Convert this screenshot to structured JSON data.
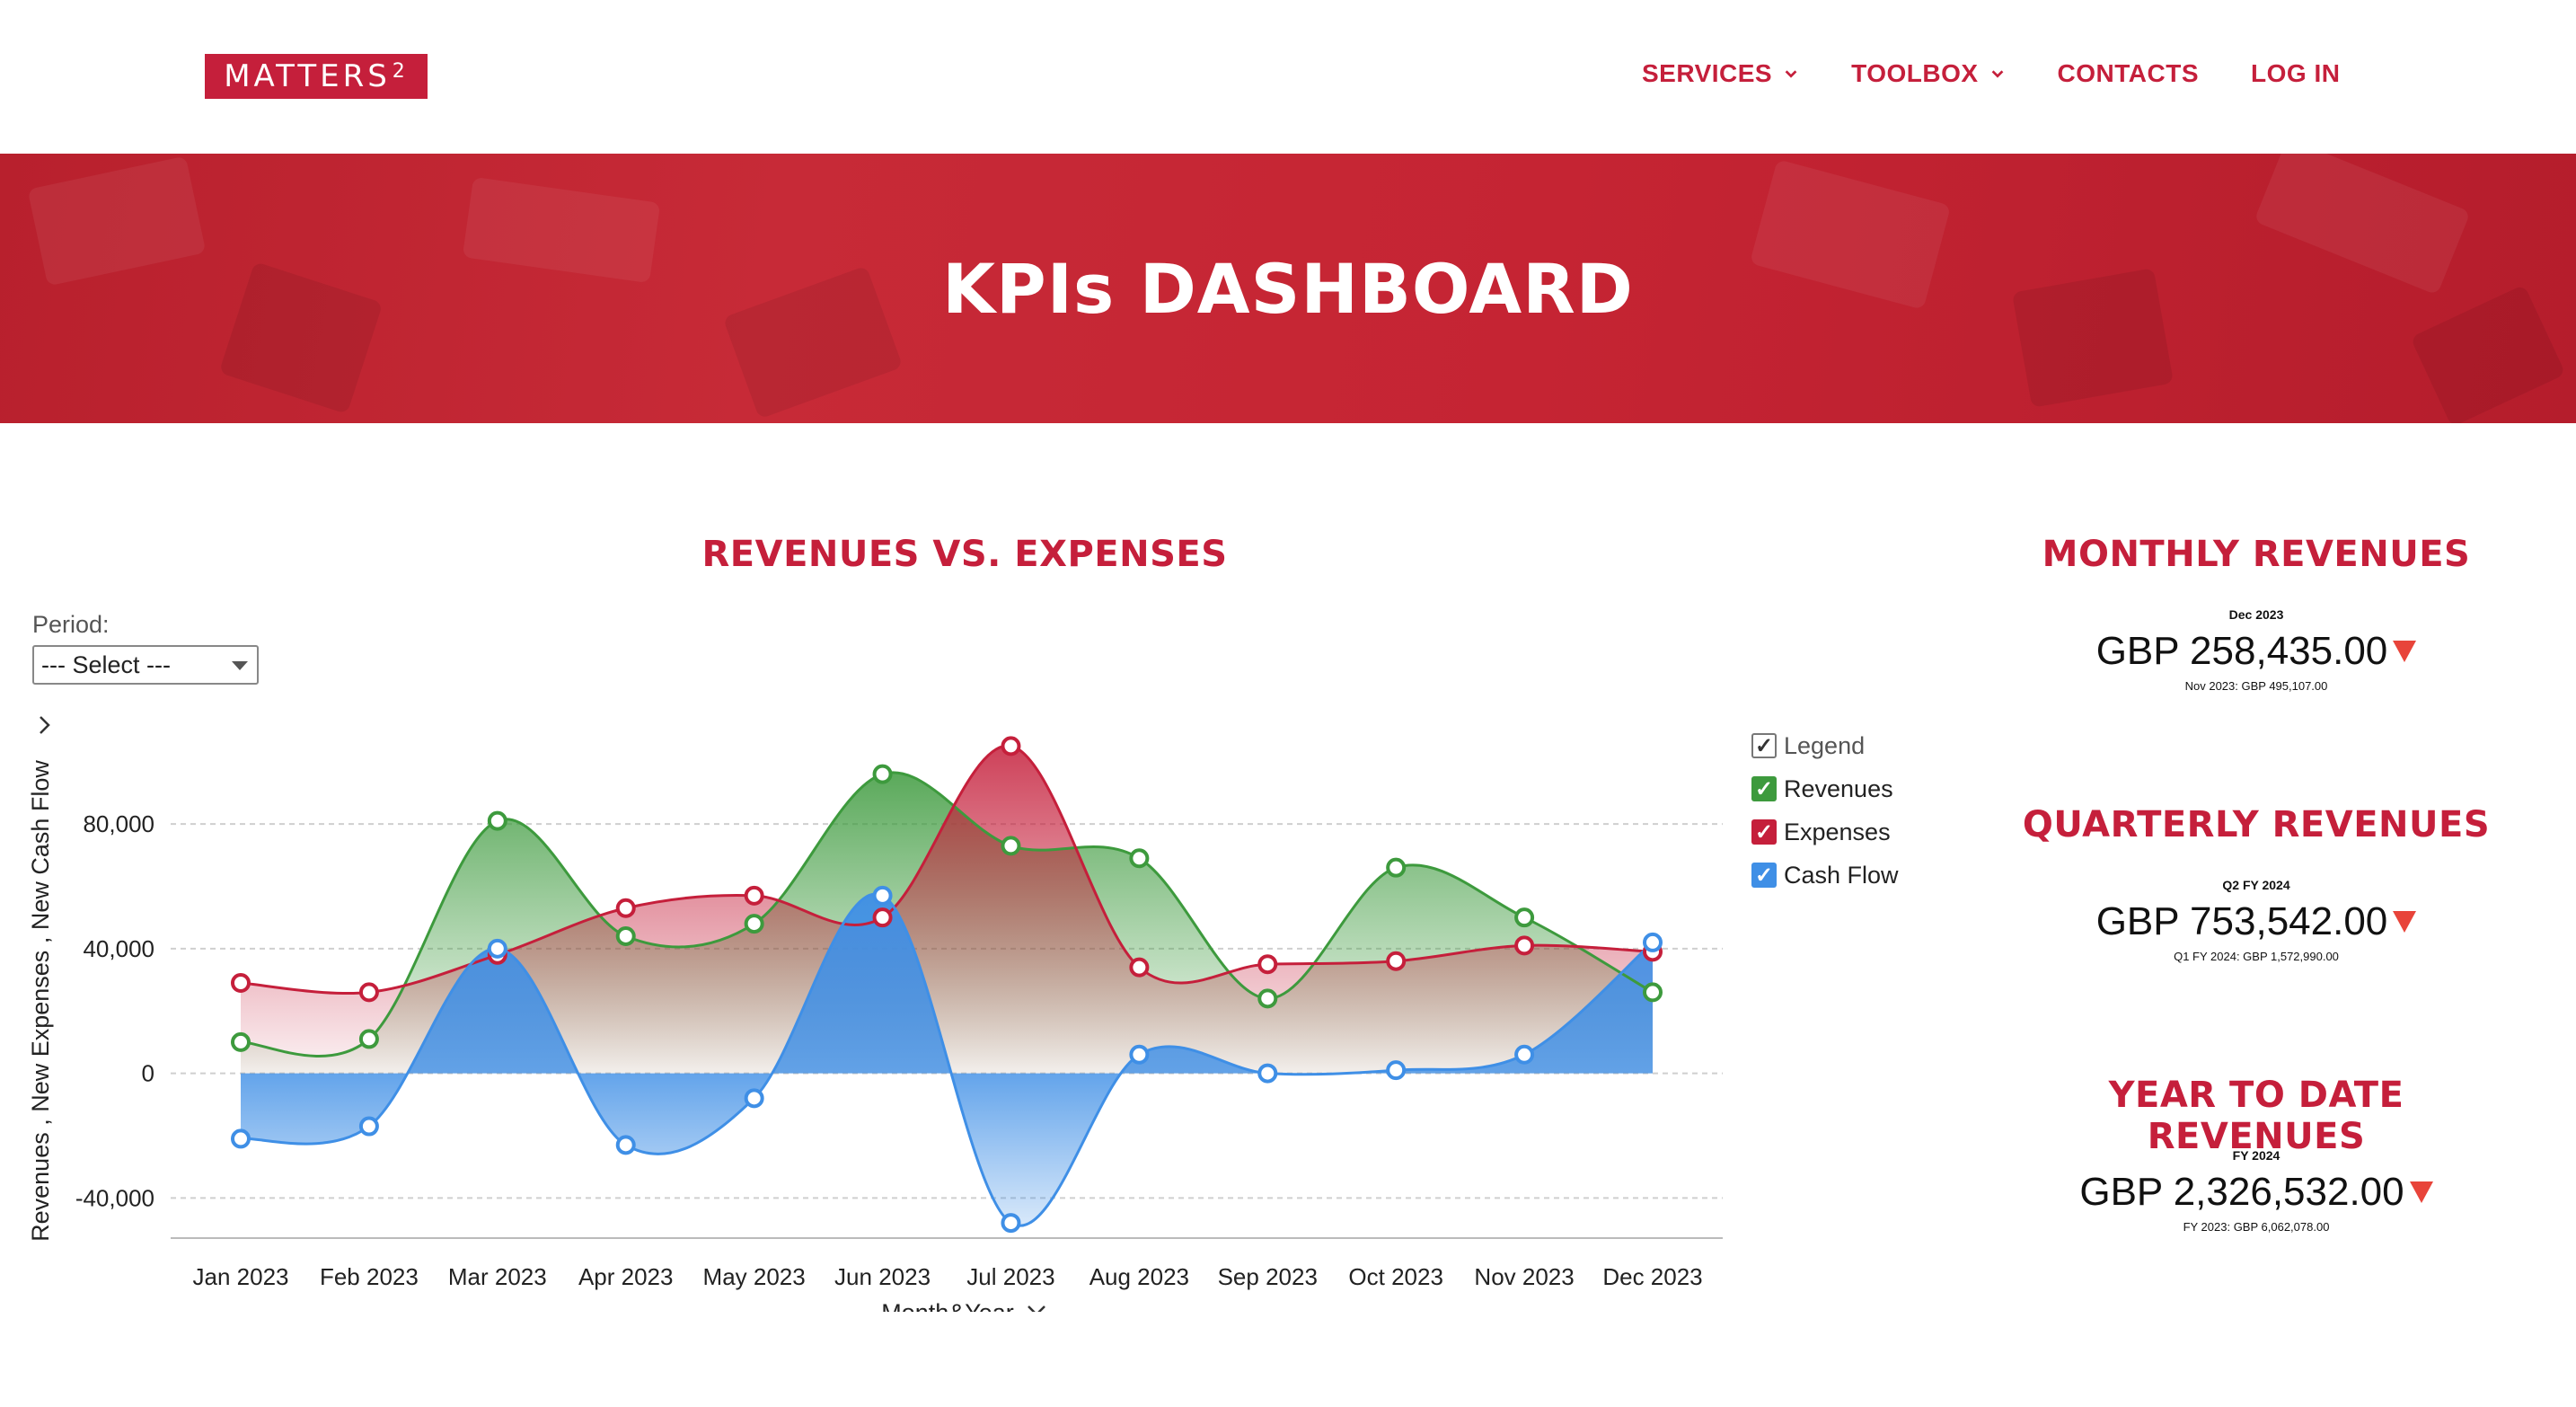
{
  "brand": {
    "name": "MATTERS",
    "superscript": "2"
  },
  "nav": {
    "items": [
      {
        "label": "SERVICES",
        "dropdown": true
      },
      {
        "label": "TOOLBOX",
        "dropdown": true
      },
      {
        "label": "CONTACTS",
        "dropdown": false
      },
      {
        "label": "LOG IN",
        "dropdown": false
      }
    ]
  },
  "hero": {
    "title": "KPIs DASHBOARD"
  },
  "chart_section": {
    "title": "REVENUES VS. EXPENSES",
    "period_label": "Period:",
    "period_select": "--- Select ---"
  },
  "chart_data": {
    "type": "area",
    "categories": [
      "Jan 2023",
      "Feb 2023",
      "Mar 2023",
      "Apr 2023",
      "May 2023",
      "Jun 2023",
      "Jul 2023",
      "Aug 2023",
      "Sep 2023",
      "Oct 2023",
      "Nov 2023",
      "Dec 2023"
    ],
    "series": [
      {
        "name": "Revenues",
        "color": "#3d9a3d",
        "values": [
          10000,
          11000,
          81000,
          44000,
          48000,
          96000,
          73000,
          69000,
          24000,
          66000,
          50000,
          26000
        ]
      },
      {
        "name": "Expenses",
        "color": "#c51f3b",
        "values": [
          29000,
          26000,
          38000,
          53000,
          57000,
          50000,
          105000,
          34000,
          35000,
          36000,
          41000,
          39000
        ]
      },
      {
        "name": "Cash Flow",
        "color": "#3f8fe6",
        "values": [
          -21000,
          -17000,
          40000,
          -23000,
          -8000,
          57000,
          -48000,
          6000,
          0,
          1000,
          6000,
          42000
        ]
      }
    ],
    "ylabel": "Revenues , New Expenses , New Cash Flow",
    "xlabel": "Month&Year",
    "yticks": [
      -40000,
      0,
      40000,
      80000
    ],
    "ytick_labels": [
      "-40,000",
      "0",
      "40,000",
      "80,000"
    ],
    "ylim": [
      -50000,
      108000
    ],
    "grid": true,
    "legend": {
      "title": "Legend",
      "placement": "right"
    }
  },
  "kpis": [
    {
      "title": "MONTHLY REVENUES",
      "period": "Dec 2023",
      "value": "GBP 258,435.00",
      "previous": "Nov 2023: GBP 495,107.00",
      "trend": "down"
    },
    {
      "title": "QUARTERLY REVENUES",
      "period": "Q2 FY 2024",
      "value": "GBP 753,542.00",
      "previous": "Q1 FY 2024: GBP 1,572,990.00",
      "trend": "down"
    },
    {
      "title": "YEAR TO DATE REVENUES",
      "period": "FY 2024",
      "value": "GBP 2,326,532.00",
      "previous": "FY 2023: GBP 6,062,078.00",
      "trend": "down"
    }
  ],
  "colors": {
    "brand": "#c51f3b",
    "trend_down": "#e8443a"
  }
}
